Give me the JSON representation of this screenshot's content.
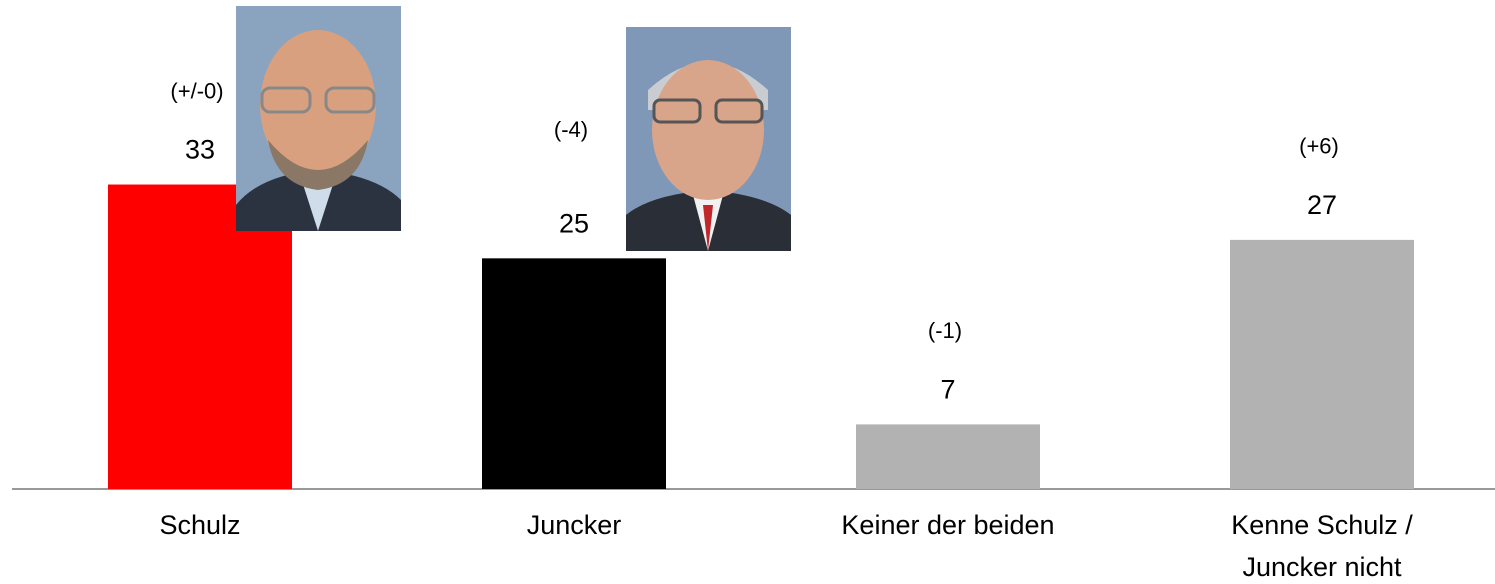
{
  "chart_data": {
    "type": "bar",
    "categories": [
      "Schulz",
      "Juncker",
      "Keiner der beiden",
      "Kenne Schulz / Juncker nicht"
    ],
    "values": [
      33,
      25,
      7,
      27
    ],
    "changes": [
      "(+/-0)",
      "(-4)",
      "(-1)",
      "(+6)"
    ],
    "colors": [
      "#ff0000",
      "#000000",
      "#b2b2b2",
      "#b2b2b2"
    ],
    "ylim": [
      0,
      53
    ]
  }
}
